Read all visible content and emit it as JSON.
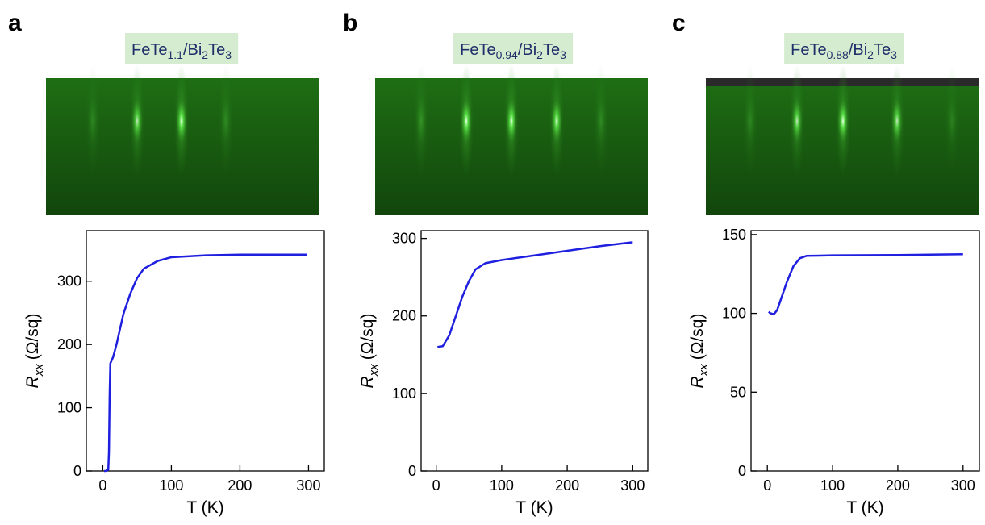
{
  "chart_data": [
    {
      "type": "line",
      "panel_label": "a",
      "title": [
        "FeTe",
        "1.1",
        "/Bi",
        "2",
        "Te",
        "3"
      ],
      "xlabel": "T (K)",
      "ylabel": [
        "R",
        "xx",
        "(Ω/sq)"
      ],
      "x": [
        2,
        5,
        8,
        9,
        10,
        11,
        15,
        20,
        30,
        40,
        50,
        60,
        80,
        100,
        150,
        200,
        250,
        298
      ],
      "series": [
        {
          "color": "#1f1fe0",
          "values": [
            0,
            0,
            2,
            30,
            120,
            170,
            180,
            200,
            248,
            280,
            305,
            320,
            332,
            338,
            341,
            342,
            342,
            342
          ]
        }
      ],
      "xlim": [
        -24,
        323
      ],
      "ylim": [
        0,
        380
      ],
      "xticks": [
        0,
        100,
        200,
        300
      ],
      "yticks": [
        0,
        100,
        200,
        300
      ]
    },
    {
      "type": "line",
      "panel_label": "b",
      "title": [
        "FeTe",
        "0.94",
        "/Bi",
        "2",
        "Te",
        "3"
      ],
      "xlabel": "T (K)",
      "ylabel": [
        "R",
        "xx",
        "(Ω/sq)"
      ],
      "x": [
        2,
        10,
        20,
        30,
        40,
        50,
        60,
        75,
        100,
        150,
        200,
        250,
        300
      ],
      "series": [
        {
          "color": "#1f1fe0",
          "values": [
            160,
            161,
            175,
            200,
            225,
            245,
            260,
            268,
            272,
            278,
            284,
            290,
            295
          ]
        }
      ],
      "xlim": [
        -23,
        323
      ],
      "ylim": [
        0,
        310
      ],
      "xticks": [
        0,
        100,
        200,
        300
      ],
      "yticks": [
        0,
        100,
        200,
        300
      ]
    },
    {
      "type": "line",
      "panel_label": "c",
      "title": [
        "FeTe",
        "0.88",
        "/Bi",
        "2",
        "Te",
        "3"
      ],
      "xlabel": "T (K)",
      "ylabel": [
        "R",
        "xx",
        "(Ω/sq)"
      ],
      "x": [
        2,
        5,
        10,
        15,
        20,
        30,
        40,
        50,
        60,
        100,
        200,
        300
      ],
      "series": [
        {
          "color": "#1f1fe0",
          "values": [
            101,
            100,
            99.5,
            102,
            108,
            120,
            130,
            135,
            136.5,
            136.8,
            137,
            137.5
          ]
        }
      ],
      "xlim": [
        -25,
        325
      ],
      "ylim": [
        0,
        152.5
      ],
      "xticks": [
        0,
        100,
        200,
        300
      ],
      "yticks": [
        0,
        50,
        100,
        150
      ]
    }
  ]
}
